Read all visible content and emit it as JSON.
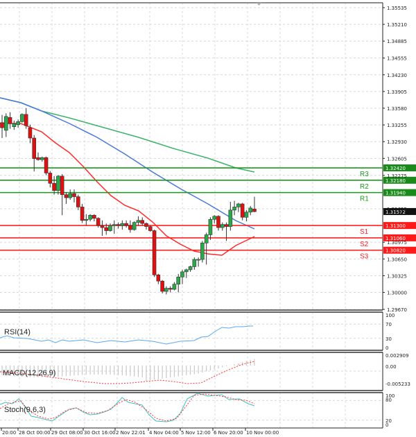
{
  "chart_data": {
    "type": "candlestick",
    "instrument_view": "Price chart with moving averages, pivot levels and oscillators",
    "price_axis": {
      "ticks": [
        "1.35535",
        "1.35210",
        "1.34885",
        "1.34555",
        "1.34230",
        "1.33905",
        "1.33580",
        "1.33255",
        "1.32930",
        "1.32605",
        "1.32275",
        "1.31625",
        "1.30975",
        "1.30650",
        "1.30325",
        "1.30000",
        "1.29670"
      ],
      "range": [
        1.2967,
        1.35535
      ]
    },
    "time_axis": {
      "ticks": [
        "20:00",
        "28 Oct 00:00",
        "29 Oct 08:00",
        "30 Oct 16:00",
        "2 Nov 22:01",
        "4 Nov 04:00",
        "5 Nov 12:00",
        "6 Nov 20:00",
        "10 Nov 00:00"
      ]
    },
    "current_price": {
      "label": "1.31572",
      "value": 1.31572
    },
    "levels": [
      {
        "name": "R3",
        "value": 1.3242,
        "label": "1.32420",
        "color": "#1a9a1a"
      },
      {
        "name": "R2",
        "value": 1.3218,
        "label": "1.32180",
        "color": "#1a9a1a"
      },
      {
        "name": "R1",
        "value": 1.3194,
        "label": "1.31940",
        "color": "#1a9a1a"
      },
      {
        "name": "S1",
        "value": 1.313,
        "label": "1.31300",
        "color": "#ff2020"
      },
      {
        "name": "S2",
        "value": 1.3106,
        "label": "1.31060",
        "color": "#ff2020"
      },
      {
        "name": "S3",
        "value": 1.3082,
        "label": "1.30820",
        "color": "#ff2020"
      }
    ],
    "candles": [
      {
        "o": 1.333,
        "h": 1.3345,
        "l": 1.33,
        "c": 1.332
      },
      {
        "o": 1.3315,
        "h": 1.3348,
        "l": 1.3302,
        "c": 1.3342
      },
      {
        "o": 1.334,
        "h": 1.335,
        "l": 1.3318,
        "c": 1.3328
      },
      {
        "o": 1.3322,
        "h": 1.3334,
        "l": 1.3316,
        "c": 1.3328
      },
      {
        "o": 1.3326,
        "h": 1.3336,
        "l": 1.332,
        "c": 1.3332
      },
      {
        "o": 1.3332,
        "h": 1.3348,
        "l": 1.333,
        "c": 1.3346
      },
      {
        "o": 1.3346,
        "h": 1.3358,
        "l": 1.3318,
        "c": 1.3324
      },
      {
        "o": 1.332,
        "h": 1.3326,
        "l": 1.329,
        "c": 1.33
      },
      {
        "o": 1.33,
        "h": 1.3306,
        "l": 1.3235,
        "c": 1.326
      },
      {
        "o": 1.3262,
        "h": 1.3272,
        "l": 1.3256,
        "c": 1.3258
      },
      {
        "o": 1.3258,
        "h": 1.3264,
        "l": 1.3254,
        "c": 1.3262
      },
      {
        "o": 1.3262,
        "h": 1.3264,
        "l": 1.3228,
        "c": 1.3232
      },
      {
        "o": 1.3232,
        "h": 1.3236,
        "l": 1.3204,
        "c": 1.3212
      },
      {
        "o": 1.3212,
        "h": 1.3226,
        "l": 1.319,
        "c": 1.3198
      },
      {
        "o": 1.3198,
        "h": 1.3228,
        "l": 1.319,
        "c": 1.3226
      },
      {
        "o": 1.3226,
        "h": 1.323,
        "l": 1.315,
        "c": 1.319
      },
      {
        "o": 1.319,
        "h": 1.3195,
        "l": 1.3172,
        "c": 1.3184
      },
      {
        "o": 1.3184,
        "h": 1.32,
        "l": 1.318,
        "c": 1.3192
      },
      {
        "o": 1.3192,
        "h": 1.32,
        "l": 1.3175,
        "c": 1.3186
      },
      {
        "o": 1.3186,
        "h": 1.319,
        "l": 1.316,
        "c": 1.3166
      },
      {
        "o": 1.3166,
        "h": 1.3172,
        "l": 1.3135,
        "c": 1.314
      },
      {
        "o": 1.314,
        "h": 1.3152,
        "l": 1.313,
        "c": 1.3142
      },
      {
        "o": 1.3142,
        "h": 1.3152,
        "l": 1.3138,
        "c": 1.315
      },
      {
        "o": 1.315,
        "h": 1.3152,
        "l": 1.3138,
        "c": 1.3144
      },
      {
        "o": 1.3144,
        "h": 1.3146,
        "l": 1.3126,
        "c": 1.313
      },
      {
        "o": 1.313,
        "h": 1.314,
        "l": 1.311,
        "c": 1.3126
      },
      {
        "o": 1.3126,
        "h": 1.3134,
        "l": 1.3112,
        "c": 1.312
      },
      {
        "o": 1.312,
        "h": 1.3134,
        "l": 1.3118,
        "c": 1.313
      },
      {
        "o": 1.313,
        "h": 1.314,
        "l": 1.3114,
        "c": 1.3132
      },
      {
        "o": 1.3132,
        "h": 1.3136,
        "l": 1.3124,
        "c": 1.313
      },
      {
        "o": 1.313,
        "h": 1.314,
        "l": 1.3122,
        "c": 1.3134
      },
      {
        "o": 1.3134,
        "h": 1.314,
        "l": 1.3126,
        "c": 1.313
      },
      {
        "o": 1.313,
        "h": 1.314,
        "l": 1.3116,
        "c": 1.3122
      },
      {
        "o": 1.3122,
        "h": 1.3138,
        "l": 1.312,
        "c": 1.3136
      },
      {
        "o": 1.3136,
        "h": 1.3148,
        "l": 1.313,
        "c": 1.314
      },
      {
        "o": 1.314,
        "h": 1.3146,
        "l": 1.313,
        "c": 1.3134
      },
      {
        "o": 1.3134,
        "h": 1.3136,
        "l": 1.3122,
        "c": 1.3128
      },
      {
        "o": 1.3128,
        "h": 1.313,
        "l": 1.3118,
        "c": 1.312
      },
      {
        "o": 1.312,
        "h": 1.3122,
        "l": 1.303,
        "c": 1.3034
      },
      {
        "o": 1.3034,
        "h": 1.3036,
        "l": 1.3016,
        "c": 1.3022
      },
      {
        "o": 1.3022,
        "h": 1.3024,
        "l": 1.2998,
        "c": 1.3002
      },
      {
        "o": 1.3002,
        "h": 1.3012,
        "l": 1.2996,
        "c": 1.3008
      },
      {
        "o": 1.3008,
        "h": 1.3012,
        "l": 1.3,
        "c": 1.3006
      },
      {
        "o": 1.3006,
        "h": 1.302,
        "l": 1.3004,
        "c": 1.3016
      },
      {
        "o": 1.3016,
        "h": 1.3036,
        "l": 1.3,
        "c": 1.303
      },
      {
        "o": 1.303,
        "h": 1.3044,
        "l": 1.3016,
        "c": 1.304
      },
      {
        "o": 1.304,
        "h": 1.3046,
        "l": 1.3028,
        "c": 1.3044
      },
      {
        "o": 1.3044,
        "h": 1.3052,
        "l": 1.304,
        "c": 1.305
      },
      {
        "o": 1.305,
        "h": 1.3068,
        "l": 1.3044,
        "c": 1.3064
      },
      {
        "o": 1.3064,
        "h": 1.3068,
        "l": 1.305,
        "c": 1.3064
      },
      {
        "o": 1.3064,
        "h": 1.31,
        "l": 1.3058,
        "c": 1.3096
      },
      {
        "o": 1.3096,
        "h": 1.3116,
        "l": 1.3054,
        "c": 1.3112
      },
      {
        "o": 1.3112,
        "h": 1.3146,
        "l": 1.3102,
        "c": 1.3142
      },
      {
        "o": 1.3142,
        "h": 1.315,
        "l": 1.3134,
        "c": 1.3148
      },
      {
        "o": 1.3148,
        "h": 1.315,
        "l": 1.312,
        "c": 1.3126
      },
      {
        "o": 1.3126,
        "h": 1.3136,
        "l": 1.312,
        "c": 1.3132
      },
      {
        "o": 1.3132,
        "h": 1.3136,
        "l": 1.31,
        "c": 1.3128
      },
      {
        "o": 1.3128,
        "h": 1.3176,
        "l": 1.312,
        "c": 1.316
      },
      {
        "o": 1.316,
        "h": 1.3178,
        "l": 1.315,
        "c": 1.3166
      },
      {
        "o": 1.3166,
        "h": 1.3174,
        "l": 1.3156,
        "c": 1.3172
      },
      {
        "o": 1.3172,
        "h": 1.3174,
        "l": 1.314,
        "c": 1.3146
      },
      {
        "o": 1.3146,
        "h": 1.316,
        "l": 1.3138,
        "c": 1.3156
      },
      {
        "o": 1.3156,
        "h": 1.3168,
        "l": 1.315,
        "c": 1.3164
      },
      {
        "o": 1.3162,
        "h": 1.3186,
        "l": 1.3156,
        "c": 1.3157
      }
    ],
    "series": [
      {
        "name": "MA fast (red)",
        "color": "#ff2a2a"
      },
      {
        "name": "MA medium (blue)",
        "color": "#4a78d8"
      },
      {
        "name": "MA slow (green)",
        "color": "#3cb468"
      }
    ],
    "indicators": [
      {
        "name": "RSI(14)",
        "ticks": [
          "100",
          "70",
          "30",
          "0"
        ],
        "color": "#5aa8ee"
      },
      {
        "name": "MACD(12,26,9)",
        "ticks": [
          "0.002909",
          "0.00",
          "-0.005233"
        ],
        "histogram_color": "#c8c8c8",
        "signal_color": "#ff3333"
      },
      {
        "name": "Stoch(9,6,3)",
        "ticks": [
          "100",
          "80",
          "20",
          "0"
        ],
        "main_color": "#40c0c0",
        "signal_color": "#ff3333"
      }
    ]
  },
  "labels": {
    "rsi": "RSI(14)",
    "macd": "MACD(12,26,9)",
    "stoch": "Stoch(9,6,3)"
  }
}
